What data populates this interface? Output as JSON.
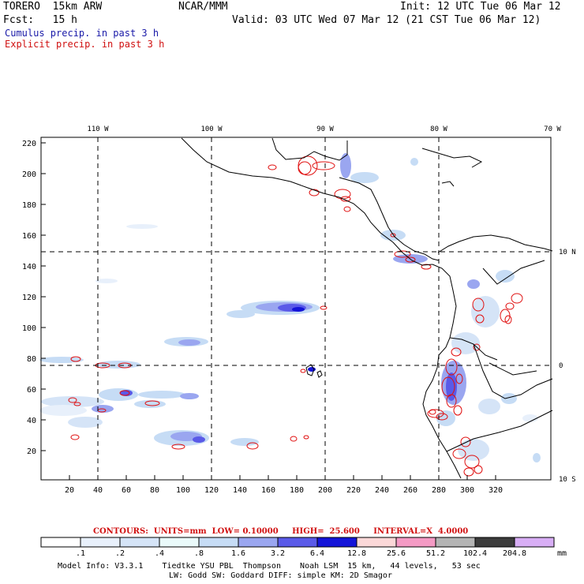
{
  "header": {
    "model_name": "TORERO  15km ARW",
    "org": "NCAR/MMM",
    "init": "Init: 12 UTC Tue 06 Mar 12",
    "fcst": "Fcst:   15 h",
    "valid": "Valid: 03 UTC Wed 07 Mar 12 (21 CST Tue 06 Mar 12)",
    "cumulus_label": "Cumulus precip. in past 3 h",
    "explicit_label": "Explicit precip. in past 3 h",
    "cumulus_color": "#2020b0",
    "explicit_color": "#e01010"
  },
  "map": {
    "top_lon_labels": [
      "110 W",
      "100 W",
      "90 W",
      "80 W",
      "70 W"
    ],
    "right_lat_labels": [
      "10 N",
      "0",
      "10 S"
    ],
    "x_ticks": [
      "20",
      "40",
      "60",
      "80",
      "100",
      "120",
      "140",
      "160",
      "180",
      "200",
      "220",
      "240",
      "260",
      "280",
      "300",
      "320"
    ],
    "y_ticks": [
      "20",
      "40",
      "60",
      "80",
      "100",
      "120",
      "140",
      "160",
      "180",
      "200",
      "220"
    ]
  },
  "contours": {
    "label": "CONTOURS:",
    "units": "UNITS=mm",
    "low": "LOW= 0.10000",
    "high": "HIGH=  25.600",
    "interval": "INTERVAL=X  4.0000"
  },
  "colorbar": {
    "labels": [
      ".1",
      ".2",
      ".4",
      ".8",
      "1.6",
      "3.2",
      "6.4",
      "12.8",
      "25.6",
      "51.2",
      "102.4",
      "204.8"
    ],
    "unit": "mm",
    "colors": [
      "#ffffff",
      "#e8f0fb",
      "#d5e4f7",
      "#eafafa",
      "#c6dcf5",
      "#9aa6f0",
      "#5a5ae8",
      "#1414d8",
      "#fbd8d8",
      "#f49ac4",
      "#b4b4b4",
      "#3c3c3c",
      "#d8aef5"
    ]
  },
  "footer": {
    "line1": "Model Info: V3.3.1    Tiedtke YSU PBL  Thompson    Noah LSM  15 km,   44 levels,   53 sec",
    "line2": "LW: Godd SW: Goddard DIFF: simple KM: 2D Smagor"
  }
}
